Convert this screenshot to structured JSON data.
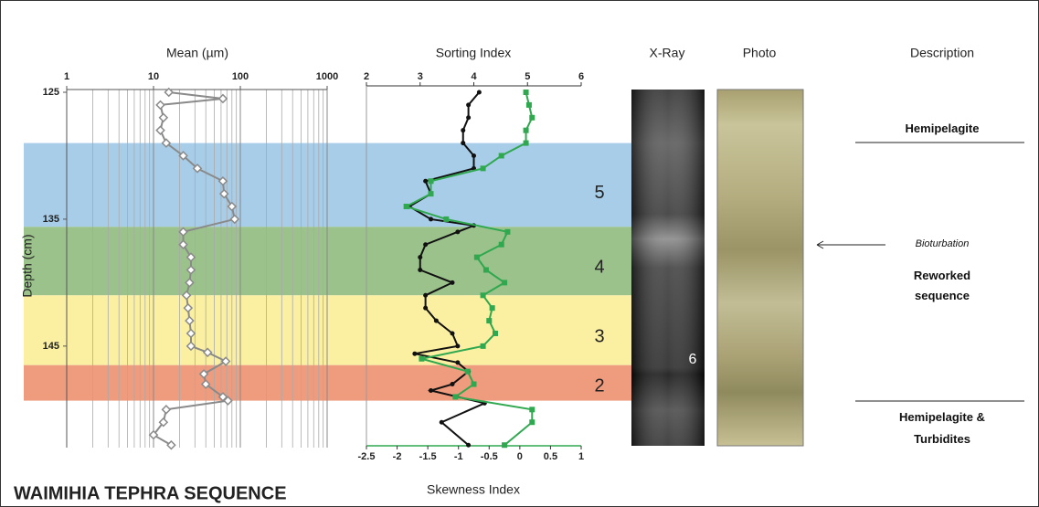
{
  "title": "WAIMIHIA TEPHRA SEQUENCE",
  "ylabel": "Depth (cm)",
  "zones": [
    {
      "label": "5",
      "top": 129,
      "bottom": 135.6,
      "color": "#a8cde9"
    },
    {
      "label": "4",
      "top": 135.6,
      "bottom": 141,
      "color": "#9cc28c"
    },
    {
      "label": "3",
      "top": 141,
      "bottom": 146.5,
      "color": "#fbf0a2"
    },
    {
      "label": "2",
      "top": 146.5,
      "bottom": 149.3,
      "color": "#ee9b7e"
    }
  ],
  "chart_data": [
    {
      "type": "line",
      "title": "Mean (µm)",
      "xscale": "log",
      "xlim": [
        1,
        1000
      ],
      "xticks": [
        1,
        10,
        100,
        1000
      ],
      "x_minor_ticks": [
        2,
        3,
        4,
        5,
        6,
        7,
        8,
        9,
        20,
        30,
        40,
        50,
        60,
        70,
        80,
        90,
        200,
        300,
        400,
        500,
        600,
        700,
        800,
        900
      ],
      "grid": true,
      "ylim": [
        125,
        153
      ],
      "yticks": [
        125,
        135,
        145
      ],
      "series": [
        {
          "color": "#8a8a8a",
          "marker": "diamond",
          "depth": [
            125,
            125.5,
            126,
            127,
            128,
            129,
            130,
            131,
            132,
            133,
            134,
            135,
            136,
            137,
            138,
            139,
            140,
            141,
            142,
            143,
            144,
            145,
            145.5,
            146.2,
            147.2,
            148,
            149,
            149.3,
            150,
            151,
            152,
            152.8
          ],
          "values": [
            15,
            63,
            12,
            13,
            12,
            14,
            22,
            32,
            63,
            65,
            80,
            86,
            22,
            22,
            27,
            27,
            26,
            24,
            25,
            26,
            27,
            27,
            42,
            68,
            38,
            40,
            63,
            72,
            14,
            13,
            10,
            16
          ]
        }
      ]
    },
    {
      "type": "line",
      "title": "Sorting Index",
      "x2label": "Skewness Index",
      "xlim": [
        2,
        6
      ],
      "xticks": [
        2,
        3,
        4,
        5,
        6
      ],
      "x2lim": [
        -2.5,
        1
      ],
      "x2ticks": [
        -2.5,
        -2,
        -1.5,
        -1,
        -0.5,
        0,
        0.5,
        1
      ],
      "ylim": [
        125,
        153
      ],
      "series": [
        {
          "color": "#111111",
          "marker": "circle",
          "depth": [
            125,
            126,
            127,
            128,
            129,
            130,
            131,
            132,
            133,
            134,
            135,
            135.5,
            136,
            137,
            138,
            139,
            140,
            141,
            142,
            143,
            144,
            145,
            145.6,
            146.3,
            147,
            148,
            148.5,
            149.5,
            151,
            152.8
          ],
          "values": [
            4.1,
            3.9,
            3.9,
            3.8,
            3.8,
            4.0,
            4.0,
            3.1,
            3.2,
            2.8,
            3.2,
            4.0,
            3.7,
            3.1,
            3.0,
            3.0,
            3.6,
            3.1,
            3.1,
            3.3,
            3.6,
            3.7,
            2.9,
            3.7,
            3.9,
            3.6,
            3.2,
            4.2,
            3.4,
            3.9
          ]
        },
        {
          "color": "#2fa84f",
          "marker": "square",
          "axis": "x2",
          "depth": [
            125,
            126,
            127,
            128,
            129,
            130,
            131,
            132,
            133,
            134,
            135,
            136,
            137,
            138,
            139,
            140,
            141,
            142,
            143,
            144,
            145,
            146,
            147,
            148,
            149,
            150,
            151,
            152.8
          ],
          "values": [
            0.1,
            0.15,
            0.2,
            0.1,
            0.1,
            -0.3,
            -0.6,
            -1.45,
            -1.45,
            -1.85,
            -1.2,
            -0.2,
            -0.3,
            -0.7,
            -0.55,
            -0.25,
            -0.6,
            -0.45,
            -0.5,
            -0.4,
            -0.6,
            -1.6,
            -0.85,
            -0.75,
            -1.05,
            0.2,
            0.2,
            -0.25
          ]
        }
      ]
    }
  ],
  "core": {
    "xray": "X-Ray",
    "photo": "Photo",
    "xray_label": "6"
  },
  "description": {
    "title": "Description",
    "top": "Hemipelagite",
    "note": "Bioturbation",
    "middle": "Reworked sequence",
    "bottom": "Hemipelagite & Turbidites"
  }
}
